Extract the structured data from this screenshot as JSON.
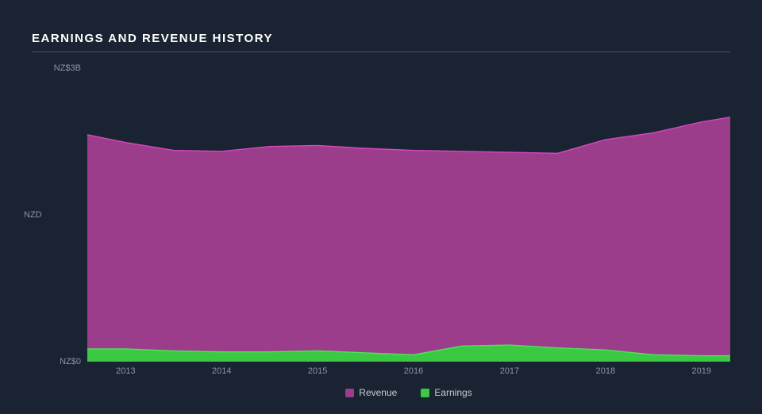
{
  "chart": {
    "type": "area",
    "title": "EARNINGS AND REVENUE HISTORY",
    "background_color": "#1a2332",
    "title_color": "#ffffff",
    "title_fontsize": 15,
    "axis_text_color": "#8a95a8",
    "axis_fontsize": 11,
    "title_rule_color": "#4a5568",
    "yaxis": {
      "label": "NZD",
      "ticks": [
        {
          "value": 0,
          "label": "NZ$0"
        },
        {
          "value": 3,
          "label": "NZ$3B"
        }
      ],
      "ylim": [
        0,
        3
      ]
    },
    "xaxis": {
      "ticks": [
        "2013",
        "2014",
        "2015",
        "2016",
        "2017",
        "2018",
        "2019"
      ],
      "xlim": [
        2012.6,
        2019.3
      ]
    },
    "series": [
      {
        "name": "Revenue",
        "fill_color": "#9b3d8a",
        "stroke_color": "#d946c2",
        "stroke_width": 1.4,
        "points": [
          {
            "x": 2012.6,
            "y": 2.32
          },
          {
            "x": 2013.0,
            "y": 2.24
          },
          {
            "x": 2013.5,
            "y": 2.16
          },
          {
            "x": 2014.0,
            "y": 2.15
          },
          {
            "x": 2014.5,
            "y": 2.2
          },
          {
            "x": 2015.0,
            "y": 2.21
          },
          {
            "x": 2015.5,
            "y": 2.18
          },
          {
            "x": 2016.0,
            "y": 2.16
          },
          {
            "x": 2016.5,
            "y": 2.15
          },
          {
            "x": 2017.0,
            "y": 2.14
          },
          {
            "x": 2017.5,
            "y": 2.13
          },
          {
            "x": 2018.0,
            "y": 2.27
          },
          {
            "x": 2018.5,
            "y": 2.34
          },
          {
            "x": 2019.0,
            "y": 2.45
          },
          {
            "x": 2019.3,
            "y": 2.5
          }
        ]
      },
      {
        "name": "Earnings",
        "fill_color": "#3bc943",
        "stroke_color": "#52e05a",
        "stroke_width": 1.4,
        "points": [
          {
            "x": 2012.6,
            "y": 0.13
          },
          {
            "x": 2013.0,
            "y": 0.13
          },
          {
            "x": 2013.5,
            "y": 0.11
          },
          {
            "x": 2014.0,
            "y": 0.1
          },
          {
            "x": 2014.5,
            "y": 0.1
          },
          {
            "x": 2015.0,
            "y": 0.11
          },
          {
            "x": 2015.5,
            "y": 0.09
          },
          {
            "x": 2016.0,
            "y": 0.07
          },
          {
            "x": 2016.5,
            "y": 0.16
          },
          {
            "x": 2017.0,
            "y": 0.17
          },
          {
            "x": 2017.5,
            "y": 0.14
          },
          {
            "x": 2018.0,
            "y": 0.12
          },
          {
            "x": 2018.5,
            "y": 0.07
          },
          {
            "x": 2019.0,
            "y": 0.06
          },
          {
            "x": 2019.3,
            "y": 0.06
          }
        ]
      }
    ],
    "legend": {
      "items": [
        {
          "label": "Revenue",
          "color": "#9b3d8a"
        },
        {
          "label": "Earnings",
          "color": "#3bc943"
        }
      ],
      "text_color": "#c5cdd8",
      "fontsize": 12
    }
  }
}
